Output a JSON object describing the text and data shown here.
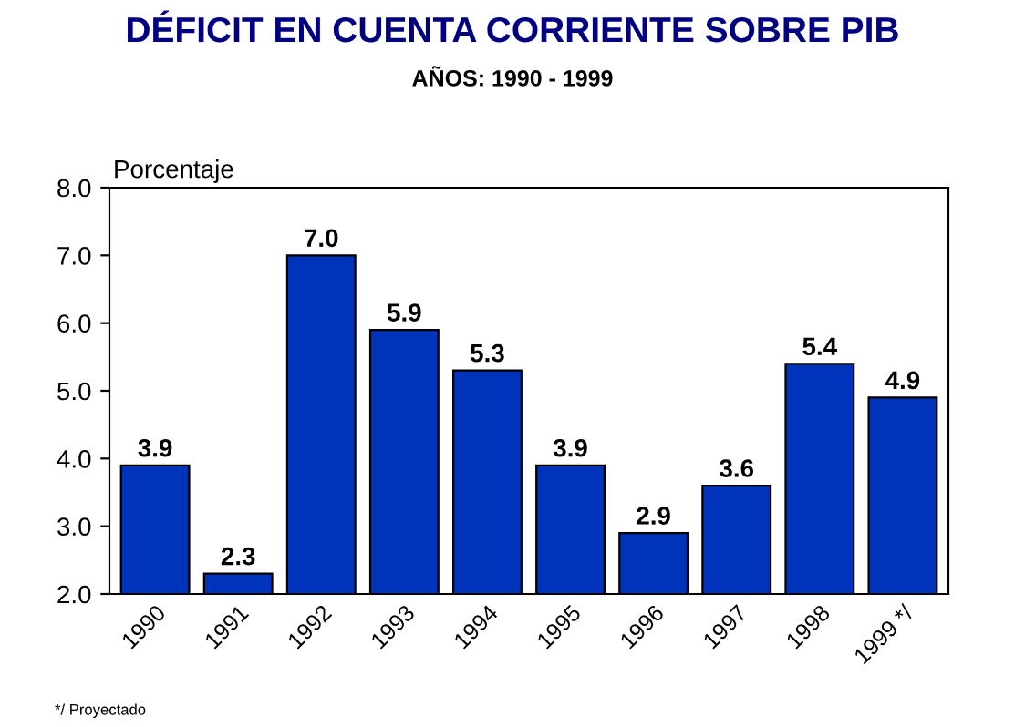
{
  "chart_data": {
    "type": "bar",
    "title": "DÉFICIT EN CUENTA CORRIENTE SOBRE PIB",
    "subtitle": "AÑOS: 1990 - 1999",
    "ylabel": "Porcentaje",
    "categories": [
      "1990",
      "1991",
      "1992",
      "1993",
      "1994",
      "1995",
      "1996",
      "1997",
      "1998",
      "1999 */"
    ],
    "values": [
      3.9,
      2.3,
      7.0,
      5.9,
      5.3,
      3.9,
      2.9,
      3.6,
      5.4,
      4.9
    ],
    "value_labels": [
      "3.9",
      "2.3",
      "7.0",
      "5.9",
      "5.3",
      "3.9",
      "2.9",
      "3.6",
      "5.4",
      "4.9"
    ],
    "color": "#0033bb",
    "ylim": [
      2,
      8
    ],
    "yticks": [
      {
        "value": 2,
        "label": "2.0"
      },
      {
        "value": 3,
        "label": "3.0"
      },
      {
        "value": 4,
        "label": "4.0"
      },
      {
        "value": 5,
        "label": "5.0"
      },
      {
        "value": 6,
        "label": "6.0"
      },
      {
        "value": 7,
        "label": "7.0"
      },
      {
        "value": 8,
        "label": "8.0"
      }
    ],
    "data_labels": true,
    "grid": false,
    "legend": false,
    "annotations": [
      "*/ Proyectado"
    ]
  }
}
